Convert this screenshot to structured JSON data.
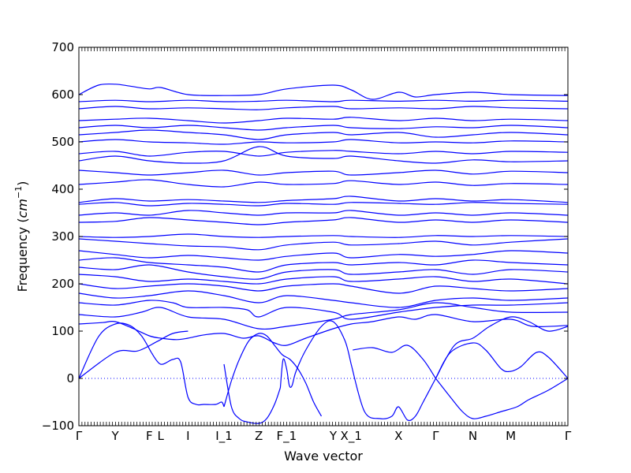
{
  "chart_data": {
    "type": "line",
    "title": "",
    "xlabel": "Wave vector",
    "ylabel": "Frequency",
    "ylabel_unit_base": "cm",
    "ylabel_unit_exp": "−1",
    "ylim": [
      -100,
      700
    ],
    "yticks": [
      -100,
      0,
      100,
      200,
      300,
      400,
      500,
      600,
      700
    ],
    "xlim": [
      0,
      12.5
    ],
    "kpoints": [
      {
        "label": "Γ",
        "x": 0
      },
      {
        "label": "Y",
        "x": 0.93
      },
      {
        "label": "F",
        "x": 1.8
      },
      {
        "label": "L",
        "x": 2.09
      },
      {
        "label": "I",
        "x": 2.79
      },
      {
        "label": "I_1",
        "x": 3.71
      },
      {
        "label": "Z",
        "x": 4.6
      },
      {
        "label": "F_1",
        "x": 5.31
      },
      {
        "label": "Y",
        "x": 6.5
      },
      {
        "label": "X_1",
        "x": 6.96
      },
      {
        "label": "X",
        "x": 8.17
      },
      {
        "label": "Γ",
        "x": 9.12
      },
      {
        "label": "N",
        "x": 10.07
      },
      {
        "label": "M",
        "x": 11.04
      },
      {
        "label": "Γ",
        "x": 12.5
      }
    ],
    "zero_line": {
      "y": 0,
      "style": "dotted",
      "color": "#0000ff"
    },
    "line_color": "#0000ff",
    "series": [
      {
        "x": [
          0,
          0.93,
          1.5,
          2.0,
          2.4,
          2.79
        ],
        "y": [
          0,
          55,
          58,
          78,
          95,
          100
        ]
      },
      {
        "x": [
          0,
          0.5,
          0.93,
          1.3,
          1.6,
          1.85
        ],
        "y": [
          0,
          88,
          115,
          112,
          90,
          55
        ]
      },
      {
        "x": [
          1.85,
          2.09,
          2.4,
          2.6,
          2.79,
          3.0,
          3.2,
          3.5,
          3.65,
          3.71
        ],
        "y": [
          55,
          30,
          40,
          35,
          -40,
          -55,
          -55,
          -55,
          -50,
          -60
        ]
      },
      {
        "x": [
          3.71,
          3.9,
          4.1,
          4.35,
          4.6,
          4.8,
          5.0,
          5.2,
          5.4,
          5.6,
          5.8,
          6.0,
          6.2
        ],
        "y": [
          -60,
          -5,
          40,
          80,
          95,
          90,
          70,
          50,
          40,
          20,
          -10,
          -50,
          -80
        ]
      },
      {
        "x": [
          3.71,
          3.9,
          4.1,
          4.3,
          4.6,
          4.8,
          5.0,
          5.15
        ],
        "y": [
          30,
          -60,
          -85,
          -92,
          -95,
          -85,
          -55,
          -20
        ]
      },
      {
        "x": [
          5.15,
          5.22,
          5.31,
          5.38,
          5.45,
          5.55,
          5.8,
          6.2,
          6.5,
          6.8,
          6.96
        ],
        "y": [
          -20,
          40,
          20,
          -15,
          -15,
          15,
          60,
          110,
          120,
          80,
          30
        ]
      },
      {
        "x": [
          6.96,
          7.3,
          7.7,
          8.0,
          8.17,
          8.4,
          8.6,
          8.8,
          9.12
        ],
        "y": [
          30,
          -70,
          -85,
          -80,
          -60,
          -88,
          -80,
          -50,
          0
        ]
      },
      {
        "x": [
          7.0,
          7.5,
          8.0,
          8.4,
          8.8,
          9.12
        ],
        "y": [
          60,
          65,
          55,
          70,
          40,
          0
        ]
      },
      {
        "x": [
          9.12,
          9.5,
          9.8,
          10.07,
          10.4,
          10.8,
          11.2,
          11.5,
          12.0,
          12.5
        ],
        "y": [
          0,
          -40,
          -70,
          -85,
          -80,
          -70,
          -60,
          -45,
          -25,
          0
        ]
      },
      {
        "x": [
          9.12,
          9.5,
          10.07,
          10.4,
          10.8,
          11.04,
          11.3,
          11.7,
          12.0,
          12.5
        ],
        "y": [
          0,
          55,
          75,
          60,
          20,
          15,
          25,
          55,
          45,
          0
        ]
      },
      {
        "x": [
          9.12,
          9.6,
          10.07,
          10.5,
          11.04,
          11.5,
          12.0,
          12.5
        ],
        "y": [
          0,
          70,
          85,
          110,
          130,
          120,
          100,
          110
        ]
      },
      {
        "x": [
          0,
          0.6,
          0.93,
          1.4,
          1.8,
          2.09,
          2.5,
          2.79,
          3.2,
          3.71,
          4.2,
          4.6,
          5.0,
          5.31,
          5.8,
          6.5,
          6.96,
          7.5,
          8.17,
          8.6,
          9.12,
          10.07,
          11.04,
          11.6,
          12.5
        ],
        "y": [
          115,
          118,
          120,
          105,
          90,
          85,
          82,
          85,
          92,
          95,
          85,
          90,
          75,
          70,
          85,
          105,
          115,
          120,
          130,
          125,
          135,
          120,
          125,
          110,
          112
        ]
      },
      {
        "x": [
          0,
          0.93,
          1.6,
          2.09,
          2.79,
          3.71,
          4.6,
          5.31,
          6.5,
          6.96,
          8.17,
          9.12,
          10.07,
          11.04,
          12.5
        ],
        "y": [
          135,
          130,
          140,
          150,
          130,
          125,
          105,
          110,
          125,
          135,
          145,
          160,
          150,
          140,
          140
        ]
      },
      {
        "x": [
          0,
          0.93,
          1.8,
          2.4,
          2.79,
          3.71,
          4.3,
          4.6,
          5.31,
          6.5,
          6.96,
          8.17,
          9.12,
          10.07,
          11.04,
          12.5
        ],
        "y": [
          160,
          155,
          165,
          160,
          150,
          150,
          145,
          130,
          150,
          140,
          125,
          140,
          150,
          155,
          155,
          160
        ]
      },
      {
        "x": [
          0,
          0.93,
          1.8,
          2.79,
          3.71,
          4.6,
          5.31,
          6.5,
          6.96,
          8.17,
          9.12,
          10.07,
          11.04,
          12.5
        ],
        "y": [
          180,
          170,
          175,
          185,
          175,
          160,
          175,
          165,
          160,
          150,
          165,
          170,
          165,
          170
        ]
      },
      {
        "x": [
          0,
          0.93,
          1.8,
          2.79,
          3.71,
          4.6,
          5.31,
          6.5,
          6.96,
          8.17,
          9.12,
          10.07,
          11.04,
          12.5
        ],
        "y": [
          200,
          190,
          195,
          200,
          195,
          185,
          195,
          200,
          195,
          180,
          195,
          190,
          185,
          190
        ]
      },
      {
        "x": [
          0,
          0.93,
          1.8,
          2.79,
          3.71,
          4.6,
          5.31,
          6.5,
          6.96,
          8.17,
          9.12,
          10.07,
          11.04,
          12.5
        ],
        "y": [
          220,
          215,
          205,
          210,
          205,
          200,
          210,
          215,
          205,
          210,
          215,
          205,
          210,
          200
        ]
      },
      {
        "x": [
          0,
          0.93,
          1.8,
          2.79,
          3.71,
          4.6,
          5.31,
          6.5,
          6.96,
          8.17,
          9.12,
          10.07,
          11.04,
          12.5
        ],
        "y": [
          235,
          230,
          240,
          225,
          215,
          210,
          225,
          230,
          220,
          225,
          230,
          220,
          230,
          225
        ]
      },
      {
        "x": [
          0,
          0.93,
          1.8,
          2.79,
          3.71,
          4.6,
          5.31,
          6.5,
          6.96,
          8.17,
          9.12,
          10.07,
          11.04,
          12.5
        ],
        "y": [
          250,
          255,
          245,
          240,
          235,
          225,
          240,
          245,
          240,
          245,
          240,
          250,
          245,
          240
        ]
      },
      {
        "x": [
          0,
          0.93,
          1.8,
          2.79,
          3.71,
          4.6,
          5.31,
          6.5,
          6.96,
          8.17,
          9.12,
          10.07,
          11.04,
          12.5
        ],
        "y": [
          270,
          262,
          255,
          260,
          255,
          250,
          258,
          265,
          255,
          262,
          258,
          262,
          270,
          265
        ]
      },
      {
        "x": [
          0,
          0.93,
          1.8,
          2.79,
          3.71,
          4.6,
          5.31,
          6.5,
          6.96,
          8.17,
          9.12,
          10.07,
          11.04,
          12.5
        ],
        "y": [
          295,
          290,
          285,
          280,
          278,
          272,
          282,
          288,
          282,
          285,
          290,
          282,
          288,
          295
        ]
      },
      {
        "x": [
          0,
          0.93,
          1.8,
          2.79,
          3.71,
          4.6,
          5.31,
          6.5,
          6.96,
          8.17,
          9.12,
          10.07,
          11.04,
          12.5
        ],
        "y": [
          300,
          298,
          300,
          305,
          300,
          298,
          300,
          302,
          300,
          298,
          302,
          300,
          302,
          300
        ]
      },
      {
        "x": [
          0,
          0.93,
          1.8,
          2.79,
          3.71,
          4.6,
          5.31,
          6.5,
          6.96,
          8.17,
          9.12,
          10.07,
          11.04,
          12.5
        ],
        "y": [
          330,
          332,
          340,
          335,
          330,
          325,
          330,
          335,
          340,
          330,
          335,
          330,
          335,
          330
        ]
      },
      {
        "x": [
          0,
          0.93,
          1.8,
          2.79,
          3.71,
          4.6,
          5.31,
          6.5,
          6.96,
          8.17,
          9.12,
          10.07,
          11.04,
          12.5
        ],
        "y": [
          345,
          350,
          345,
          355,
          350,
          345,
          350,
          350,
          355,
          345,
          350,
          345,
          350,
          345
        ]
      },
      {
        "x": [
          0,
          0.93,
          1.8,
          2.79,
          3.71,
          4.6,
          5.31,
          6.5,
          6.96,
          8.17,
          9.12,
          10.07,
          11.04,
          12.5
        ],
        "y": [
          368,
          372,
          365,
          370,
          368,
          365,
          370,
          368,
          372,
          370,
          368,
          372,
          370,
          368
        ]
      },
      {
        "x": [
          0,
          0.93,
          1.8,
          2.79,
          3.71,
          4.6,
          5.31,
          6.5,
          6.96,
          8.17,
          9.12,
          10.07,
          11.04,
          12.5
        ],
        "y": [
          372,
          380,
          375,
          378,
          375,
          372,
          376,
          380,
          385,
          375,
          380,
          375,
          378,
          372
        ]
      },
      {
        "x": [
          0,
          0.93,
          1.8,
          2.79,
          3.71,
          4.6,
          5.31,
          6.5,
          6.96,
          8.17,
          9.12,
          10.07,
          11.04,
          12.5
        ],
        "y": [
          410,
          415,
          420,
          410,
          405,
          415,
          410,
          412,
          418,
          410,
          415,
          408,
          412,
          410
        ]
      },
      {
        "x": [
          0,
          0.93,
          1.8,
          2.79,
          3.71,
          4.6,
          5.31,
          6.5,
          6.96,
          8.17,
          9.12,
          10.07,
          11.04,
          12.5
        ],
        "y": [
          440,
          435,
          430,
          435,
          440,
          430,
          435,
          438,
          430,
          435,
          440,
          432,
          438,
          435
        ]
      },
      {
        "x": [
          0,
          0.93,
          1.8,
          2.79,
          3.71,
          4.6,
          5.31,
          6.5,
          6.96,
          8.17,
          9.12,
          10.07,
          11.04,
          12.5
        ],
        "y": [
          460,
          470,
          460,
          455,
          460,
          490,
          470,
          465,
          470,
          460,
          455,
          462,
          458,
          460
        ]
      },
      {
        "x": [
          0,
          0.93,
          1.8,
          2.79,
          3.71,
          4.6,
          5.31,
          6.5,
          6.96,
          8.17,
          9.12,
          10.07,
          11.04,
          12.5
        ],
        "y": [
          475,
          480,
          470,
          478,
          480,
          470,
          478,
          482,
          480,
          475,
          480,
          475,
          480,
          478
        ]
      },
      {
        "x": [
          0,
          0.93,
          1.8,
          2.79,
          3.71,
          4.6,
          5.31,
          6.5,
          6.96,
          8.17,
          9.12,
          10.07,
          11.04,
          12.5
        ],
        "y": [
          500,
          505,
          500,
          498,
          495,
          500,
          498,
          500,
          505,
          498,
          500,
          498,
          502,
          500
        ]
      },
      {
        "x": [
          0,
          0.93,
          1.8,
          2.79,
          3.71,
          4.6,
          5.31,
          6.5,
          6.96,
          8.17,
          9.12,
          10.07,
          11.04,
          12.5
        ],
        "y": [
          515,
          520,
          525,
          520,
          515,
          505,
          515,
          520,
          515,
          520,
          510,
          515,
          520,
          515
        ]
      },
      {
        "x": [
          0,
          0.93,
          1.8,
          2.79,
          3.71,
          4.6,
          5.31,
          6.5,
          6.96,
          8.17,
          9.12,
          10.07,
          11.04,
          12.5
        ],
        "y": [
          530,
          535,
          530,
          535,
          530,
          525,
          530,
          535,
          530,
          528,
          532,
          530,
          535,
          530
        ]
      },
      {
        "x": [
          0,
          0.93,
          1.8,
          2.79,
          3.71,
          4.6,
          5.31,
          6.5,
          6.96,
          8.17,
          9.12,
          10.07,
          11.04,
          12.5
        ],
        "y": [
          545,
          548,
          550,
          545,
          540,
          545,
          550,
          548,
          552,
          545,
          550,
          545,
          548,
          545
        ]
      },
      {
        "x": [
          0,
          0.93,
          1.8,
          2.79,
          3.71,
          4.6,
          5.31,
          6.5,
          6.96,
          8.17,
          9.12,
          10.07,
          11.04,
          12.5
        ],
        "y": [
          570,
          575,
          570,
          572,
          570,
          568,
          572,
          575,
          570,
          572,
          570,
          575,
          572,
          570
        ]
      },
      {
        "x": [
          0,
          0.93,
          1.8,
          2.79,
          3.71,
          4.6,
          5.31,
          6.5,
          6.96,
          8.17,
          9.12,
          10.07,
          11.04,
          12.5
        ],
        "y": [
          585,
          588,
          585,
          588,
          585,
          586,
          588,
          585,
          588,
          586,
          588,
          586,
          588,
          586
        ]
      },
      {
        "x": [
          0,
          0.5,
          0.93,
          1.3,
          1.8,
          2.09,
          2.79,
          3.71,
          4.6,
          5.31,
          6.5,
          6.96,
          7.5,
          8.17,
          8.6,
          9.12,
          10.07,
          11.04,
          12.5
        ],
        "y": [
          600,
          620,
          622,
          618,
          612,
          615,
          600,
          598,
          600,
          612,
          620,
          610,
          590,
          605,
          595,
          600,
          605,
          600,
          598
        ]
      }
    ]
  }
}
